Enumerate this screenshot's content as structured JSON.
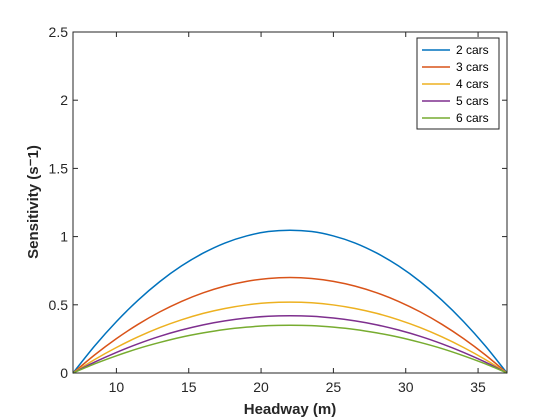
{
  "chart_data": {
    "type": "line",
    "xlabel": "Headway (m)",
    "ylabel": "Sensitivity (s⁻1)",
    "xlim": [
      7,
      37
    ],
    "ylim": [
      0,
      2.5
    ],
    "xticks": [
      10,
      15,
      20,
      25,
      30,
      35
    ],
    "yticks": [
      0,
      0.5,
      1,
      1.5,
      2,
      2.5
    ],
    "xtick_labels": [
      "10",
      "15",
      "20",
      "25",
      "30",
      "35"
    ],
    "ytick_labels": [
      "0",
      "0.5",
      "1",
      "1.5",
      "2",
      "2.5"
    ],
    "grid": false,
    "legend_position": "top-right",
    "x": [
      7,
      8.5,
      10,
      11.5,
      13,
      14.5,
      16,
      17.5,
      19,
      20.5,
      22,
      23.5,
      25,
      26.5,
      28,
      29.5,
      31,
      32.5,
      34,
      35.5,
      37
    ],
    "series": [
      {
        "name": "2 cars",
        "color": "#0072BD",
        "values": [
          0,
          0.199,
          0.377,
          0.534,
          0.67,
          0.785,
          0.879,
          0.953,
          1.005,
          1.037,
          1.047,
          1.037,
          1.005,
          0.953,
          0.879,
          0.785,
          0.67,
          0.534,
          0.377,
          0.199,
          0
        ]
      },
      {
        "name": "3 cars",
        "color": "#D95319",
        "values": [
          0,
          0.133,
          0.252,
          0.357,
          0.448,
          0.525,
          0.588,
          0.637,
          0.672,
          0.693,
          0.7,
          0.693,
          0.672,
          0.637,
          0.588,
          0.525,
          0.448,
          0.357,
          0.252,
          0.133,
          0
        ]
      },
      {
        "name": "4 cars",
        "color": "#EDB120",
        "values": [
          0,
          0.099,
          0.187,
          0.265,
          0.333,
          0.39,
          0.437,
          0.473,
          0.499,
          0.515,
          0.52,
          0.515,
          0.499,
          0.473,
          0.437,
          0.39,
          0.333,
          0.265,
          0.187,
          0.099,
          0
        ]
      },
      {
        "name": "5 cars",
        "color": "#7E2F8E",
        "values": [
          0,
          0.08,
          0.151,
          0.214,
          0.269,
          0.315,
          0.353,
          0.382,
          0.403,
          0.416,
          0.42,
          0.416,
          0.403,
          0.382,
          0.353,
          0.315,
          0.269,
          0.214,
          0.151,
          0.08,
          0
        ]
      },
      {
        "name": "6 cars",
        "color": "#77AC30",
        "values": [
          0,
          0.067,
          0.126,
          0.179,
          0.224,
          0.263,
          0.294,
          0.319,
          0.336,
          0.347,
          0.35,
          0.347,
          0.336,
          0.319,
          0.294,
          0.263,
          0.224,
          0.179,
          0.126,
          0.067,
          0
        ]
      }
    ]
  }
}
